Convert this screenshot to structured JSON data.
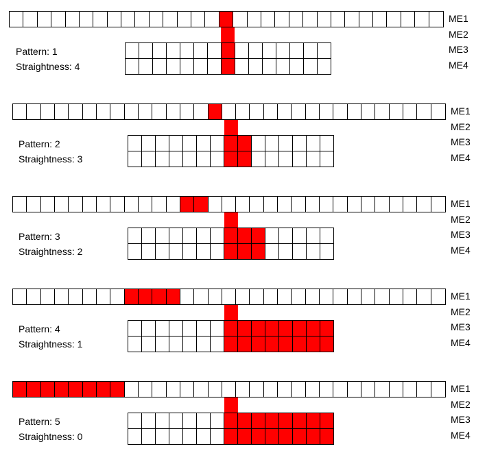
{
  "layer_labels": [
    "ME1",
    "ME2",
    "ME3",
    "ME4"
  ],
  "highlight_color": "#ff0000",
  "grid_line_color": "#000000",
  "panels": [
    {
      "pattern_label": "Pattern: 1",
      "straightness_label": "Straightness: 4",
      "me1_cells": 31,
      "me1_filled_index": [
        15
      ],
      "me2_filled": true,
      "lower_cells": 15,
      "lower_filled_index_me3": [
        7
      ],
      "lower_filled_index_me4": [
        7
      ]
    },
    {
      "pattern_label": "Pattern: 2",
      "straightness_label": "Straightness: 3",
      "me1_cells": 31,
      "me1_filled_index": [
        14
      ],
      "me2_filled": true,
      "lower_cells": 15,
      "lower_filled_index_me3": [
        7,
        8
      ],
      "lower_filled_index_me4": [
        7,
        8
      ]
    },
    {
      "pattern_label": "Pattern: 3",
      "straightness_label": "Straightness: 2",
      "me1_cells": 31,
      "me1_filled_index": [
        12,
        13
      ],
      "me2_filled": true,
      "lower_cells": 15,
      "lower_filled_index_me3": [
        7,
        8,
        9
      ],
      "lower_filled_index_me4": [
        7,
        8,
        9
      ]
    },
    {
      "pattern_label": "Pattern: 4",
      "straightness_label": "Straightness: 1",
      "me1_cells": 31,
      "me1_filled_index": [
        8,
        9,
        10,
        11
      ],
      "me2_filled": true,
      "lower_cells": 15,
      "lower_filled_index_me3": [
        7,
        8,
        9,
        10,
        11,
        12,
        13,
        14
      ],
      "lower_filled_index_me4": [
        7,
        8,
        9,
        10,
        11,
        12,
        13,
        14
      ]
    },
    {
      "pattern_label": "Pattern: 5",
      "straightness_label": "Straightness: 0",
      "me1_cells": 31,
      "me1_filled_index": [
        0,
        1,
        2,
        3,
        4,
        5,
        6,
        7
      ],
      "me2_filled": true,
      "lower_cells": 15,
      "lower_filled_index_me3": [
        7,
        8,
        9,
        10,
        11,
        12,
        13,
        14
      ],
      "lower_filled_index_me4": [
        7,
        8,
        9,
        10,
        11,
        12,
        13,
        14
      ]
    }
  ]
}
